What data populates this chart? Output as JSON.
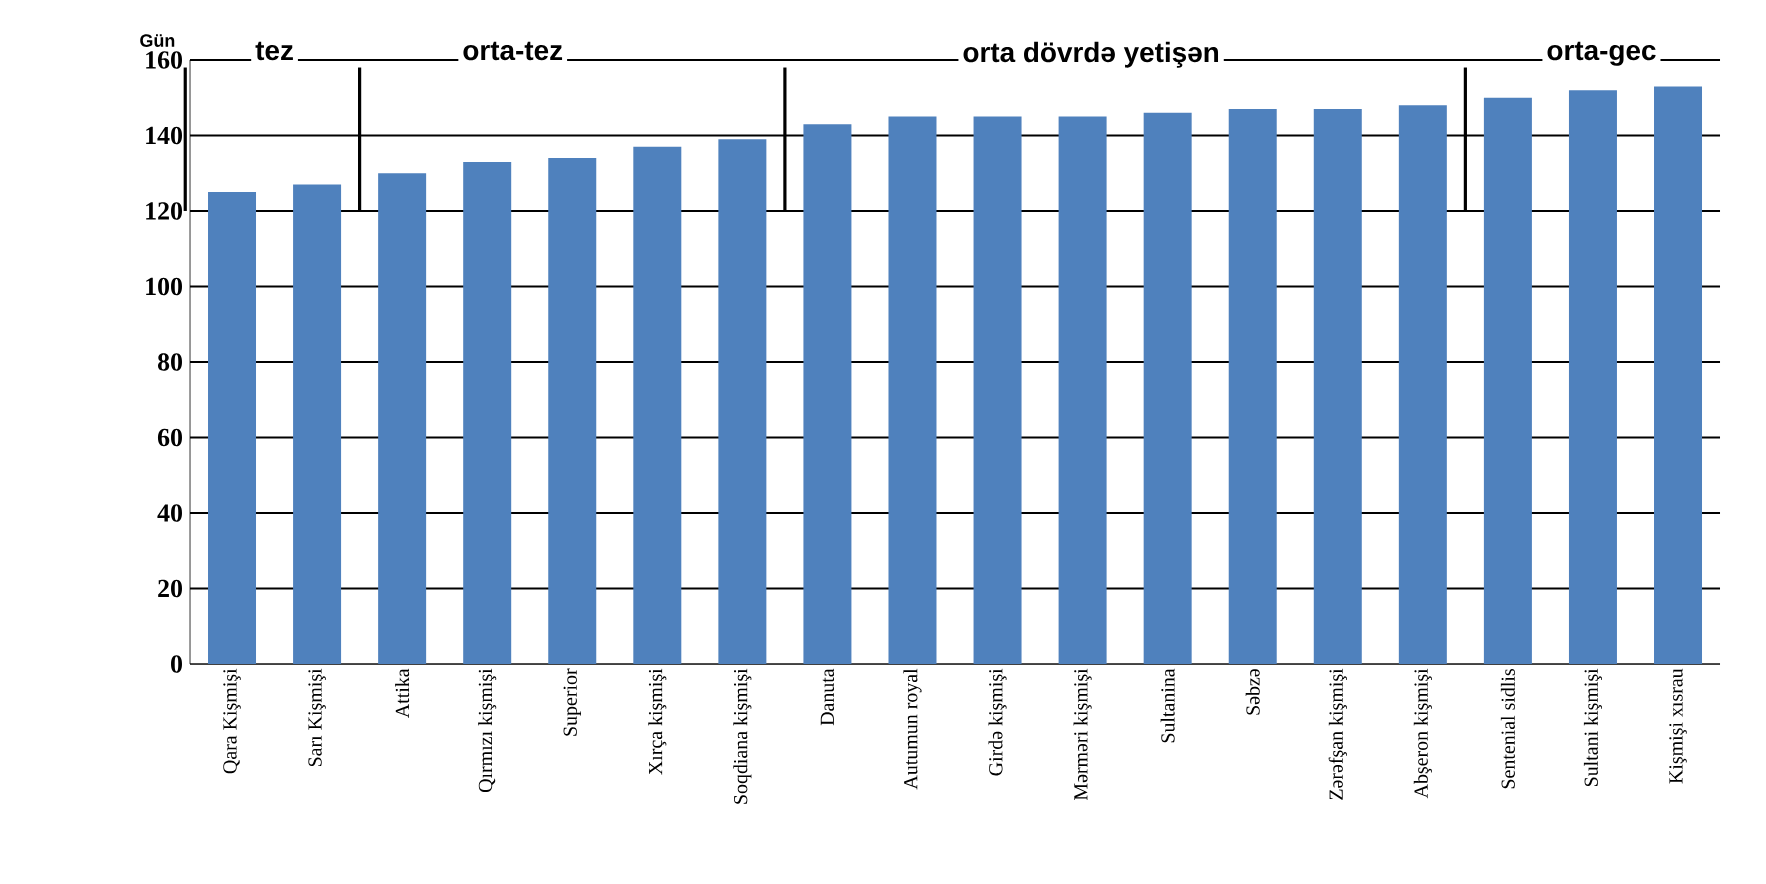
{
  "chart_data": {
    "type": "bar",
    "ylabel": "Gün",
    "categories": [
      "Qara Kişmişi",
      "Sarı Kişmişi",
      "Attika",
      "Qırmızı kişmişi",
      "Superior",
      "Xırça kişmişi",
      "Soqdiana kişmişi",
      "Danuta",
      "Autumun royal",
      "Girdə kişmişi",
      "Mərməri kişmişi",
      "Sultanina",
      "Səbzə",
      "Zərəfşan kişmişi",
      "Abşeron kişmişi",
      "Sentenial sidlis",
      "Sultani kişmişi",
      "Kişmişi xısrau"
    ],
    "values": [
      125,
      127,
      130,
      133,
      134,
      137,
      139,
      143,
      145,
      145,
      145,
      146,
      147,
      147,
      148,
      150,
      152,
      153
    ],
    "color": "#4f81bd",
    "ylim": [
      0,
      160
    ],
    "yticks": [
      0,
      20,
      40,
      60,
      80,
      100,
      120,
      140,
      160
    ],
    "grid": "y",
    "annotations": [
      "tez",
      "orta-tez",
      "orta dövrdə yetişən",
      "orta-gec"
    ]
  }
}
